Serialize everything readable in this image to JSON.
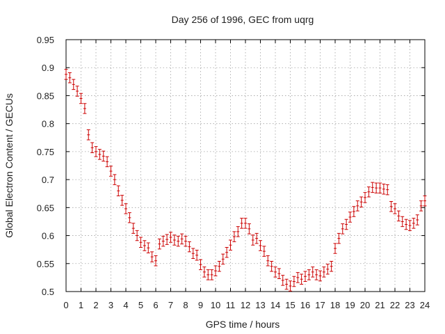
{
  "chart_data": {
    "type": "scatter",
    "title": "Day 256 of 1996, GEC from uqrg",
    "xlabel": "GPS time / hours",
    "ylabel": "Global Electron Content / GECUs",
    "xlim": [
      0,
      24
    ],
    "ylim": [
      0.5,
      0.95
    ],
    "x_ticks": [
      0,
      1,
      2,
      3,
      4,
      5,
      6,
      7,
      8,
      9,
      10,
      11,
      12,
      13,
      14,
      15,
      16,
      17,
      18,
      19,
      20,
      21,
      22,
      23,
      24
    ],
    "y_ticks": [
      0.5,
      0.55,
      0.6,
      0.65,
      0.7,
      0.75,
      0.8,
      0.85,
      0.9,
      0.95
    ],
    "y_tick_labels": [
      "0.5",
      "0.55",
      "0.6",
      "0.65",
      "0.7",
      "0.75",
      "0.8",
      "0.85",
      "0.9",
      "0.95"
    ],
    "grid": true,
    "series_color": "#cc0000",
    "series": [
      {
        "name": "GEC",
        "x": [
          0,
          0.25,
          0.5,
          0.75,
          1,
          1.25,
          1.5,
          1.75,
          2,
          2.25,
          2.5,
          2.75,
          3,
          3.25,
          3.5,
          3.75,
          4,
          4.25,
          4.5,
          4.75,
          5,
          5.25,
          5.5,
          5.75,
          6,
          6.25,
          6.5,
          6.75,
          7,
          7.25,
          7.5,
          7.75,
          8,
          8.25,
          8.5,
          8.75,
          9,
          9.25,
          9.5,
          9.75,
          10,
          10.25,
          10.5,
          10.75,
          11,
          11.25,
          11.5,
          11.75,
          12,
          12.25,
          12.5,
          12.75,
          13,
          13.25,
          13.5,
          13.75,
          14,
          14.25,
          14.5,
          14.75,
          15,
          15.25,
          15.5,
          15.75,
          16,
          16.25,
          16.5,
          16.75,
          17,
          17.25,
          17.5,
          17.75,
          18,
          18.25,
          18.5,
          18.75,
          19,
          19.25,
          19.5,
          19.75,
          20,
          20.25,
          20.5,
          20.75,
          21,
          21.25,
          21.5,
          21.75,
          22,
          22.25,
          22.5,
          22.75,
          23,
          23.25,
          23.5,
          23.75,
          24
        ],
        "y": [
          0.888,
          0.882,
          0.87,
          0.858,
          0.845,
          0.827,
          0.78,
          0.757,
          0.75,
          0.745,
          0.742,
          0.732,
          0.715,
          0.7,
          0.68,
          0.663,
          0.648,
          0.632,
          0.613,
          0.6,
          0.588,
          0.582,
          0.578,
          0.562,
          0.555,
          0.585,
          0.59,
          0.593,
          0.597,
          0.592,
          0.59,
          0.594,
          0.59,
          0.58,
          0.568,
          0.565,
          0.548,
          0.535,
          0.53,
          0.53,
          0.537,
          0.545,
          0.558,
          0.57,
          0.583,
          0.598,
          0.607,
          0.622,
          0.622,
          0.612,
          0.592,
          0.595,
          0.582,
          0.572,
          0.555,
          0.545,
          0.535,
          0.532,
          0.52,
          0.513,
          0.51,
          0.518,
          0.525,
          0.522,
          0.527,
          0.53,
          0.535,
          0.53,
          0.528,
          0.535,
          0.54,
          0.545,
          0.577,
          0.595,
          0.612,
          0.62,
          0.633,
          0.643,
          0.653,
          0.66,
          0.668,
          0.678,
          0.686,
          0.685,
          0.685,
          0.683,
          0.682,
          0.652,
          0.648,
          0.635,
          0.625,
          0.62,
          0.618,
          0.622,
          0.628,
          0.653,
          0.662
        ]
      }
    ],
    "error_half_width": 0.009
  }
}
